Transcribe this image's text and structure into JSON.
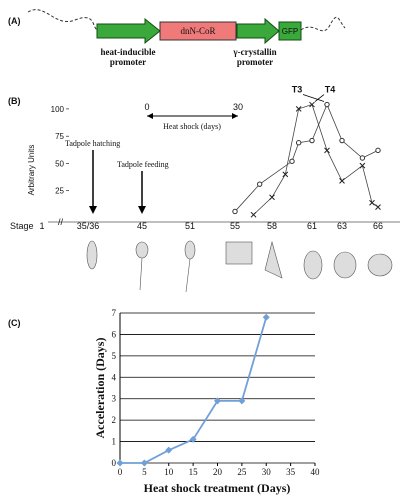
{
  "panel_a": {
    "label": "(A)",
    "gene": "dnN-CoR",
    "reporter": "GFP",
    "promoter1": [
      "heat-inducible",
      "promoter"
    ],
    "promoter2": [
      "γ-crystallin",
      "promoter"
    ]
  },
  "panel_b": {
    "label": "(B)",
    "ylabel": "Arbitrary Units",
    "xlabel": "Stage",
    "categories": [
      "1",
      "35/36",
      "45",
      "51",
      "55",
      "58",
      "61",
      "63",
      "66"
    ],
    "ylim": [
      0,
      110
    ],
    "yticks": [
      25,
      50,
      75,
      100
    ],
    "heat_shock": {
      "label": "Heat shock (days)",
      "ticks": [
        0,
        30
      ]
    },
    "events": [
      "Tadpole hatching",
      "Tadpole feeding"
    ],
    "series": [
      {
        "name": "T3",
        "marker": "circle",
        "x": [
          55,
          57,
          59.5,
          60,
          61,
          62,
          63,
          64.7,
          66
        ],
        "values": [
          6,
          31,
          52,
          69,
          71,
          104,
          71,
          55,
          62
        ]
      },
      {
        "name": "T4",
        "marker": "cross",
        "x": [
          56.5,
          58,
          59,
          60,
          61,
          62,
          63,
          64.7,
          65.5,
          66
        ],
        "values": [
          3,
          19,
          40,
          100,
          104,
          62,
          34,
          48,
          14,
          10
        ]
      }
    ]
  },
  "chart_data": {
    "label": "(C)",
    "type": "line",
    "xlabel": "Heat shock treatment (Days)",
    "ylabel": "Acceleration (Days)",
    "x": [
      0,
      5,
      10,
      15,
      20,
      25,
      30
    ],
    "values": [
      0,
      0,
      0.6,
      1.1,
      2.9,
      2.9,
      6.8
    ],
    "color": "#6fa0d8",
    "xlim": [
      0,
      40
    ],
    "xticks": [
      0,
      5,
      10,
      15,
      20,
      25,
      30,
      35,
      40
    ],
    "ylim": [
      0,
      7
    ],
    "yticks": [
      0,
      1,
      2,
      3,
      4,
      5,
      6,
      7
    ],
    "grid": true
  }
}
